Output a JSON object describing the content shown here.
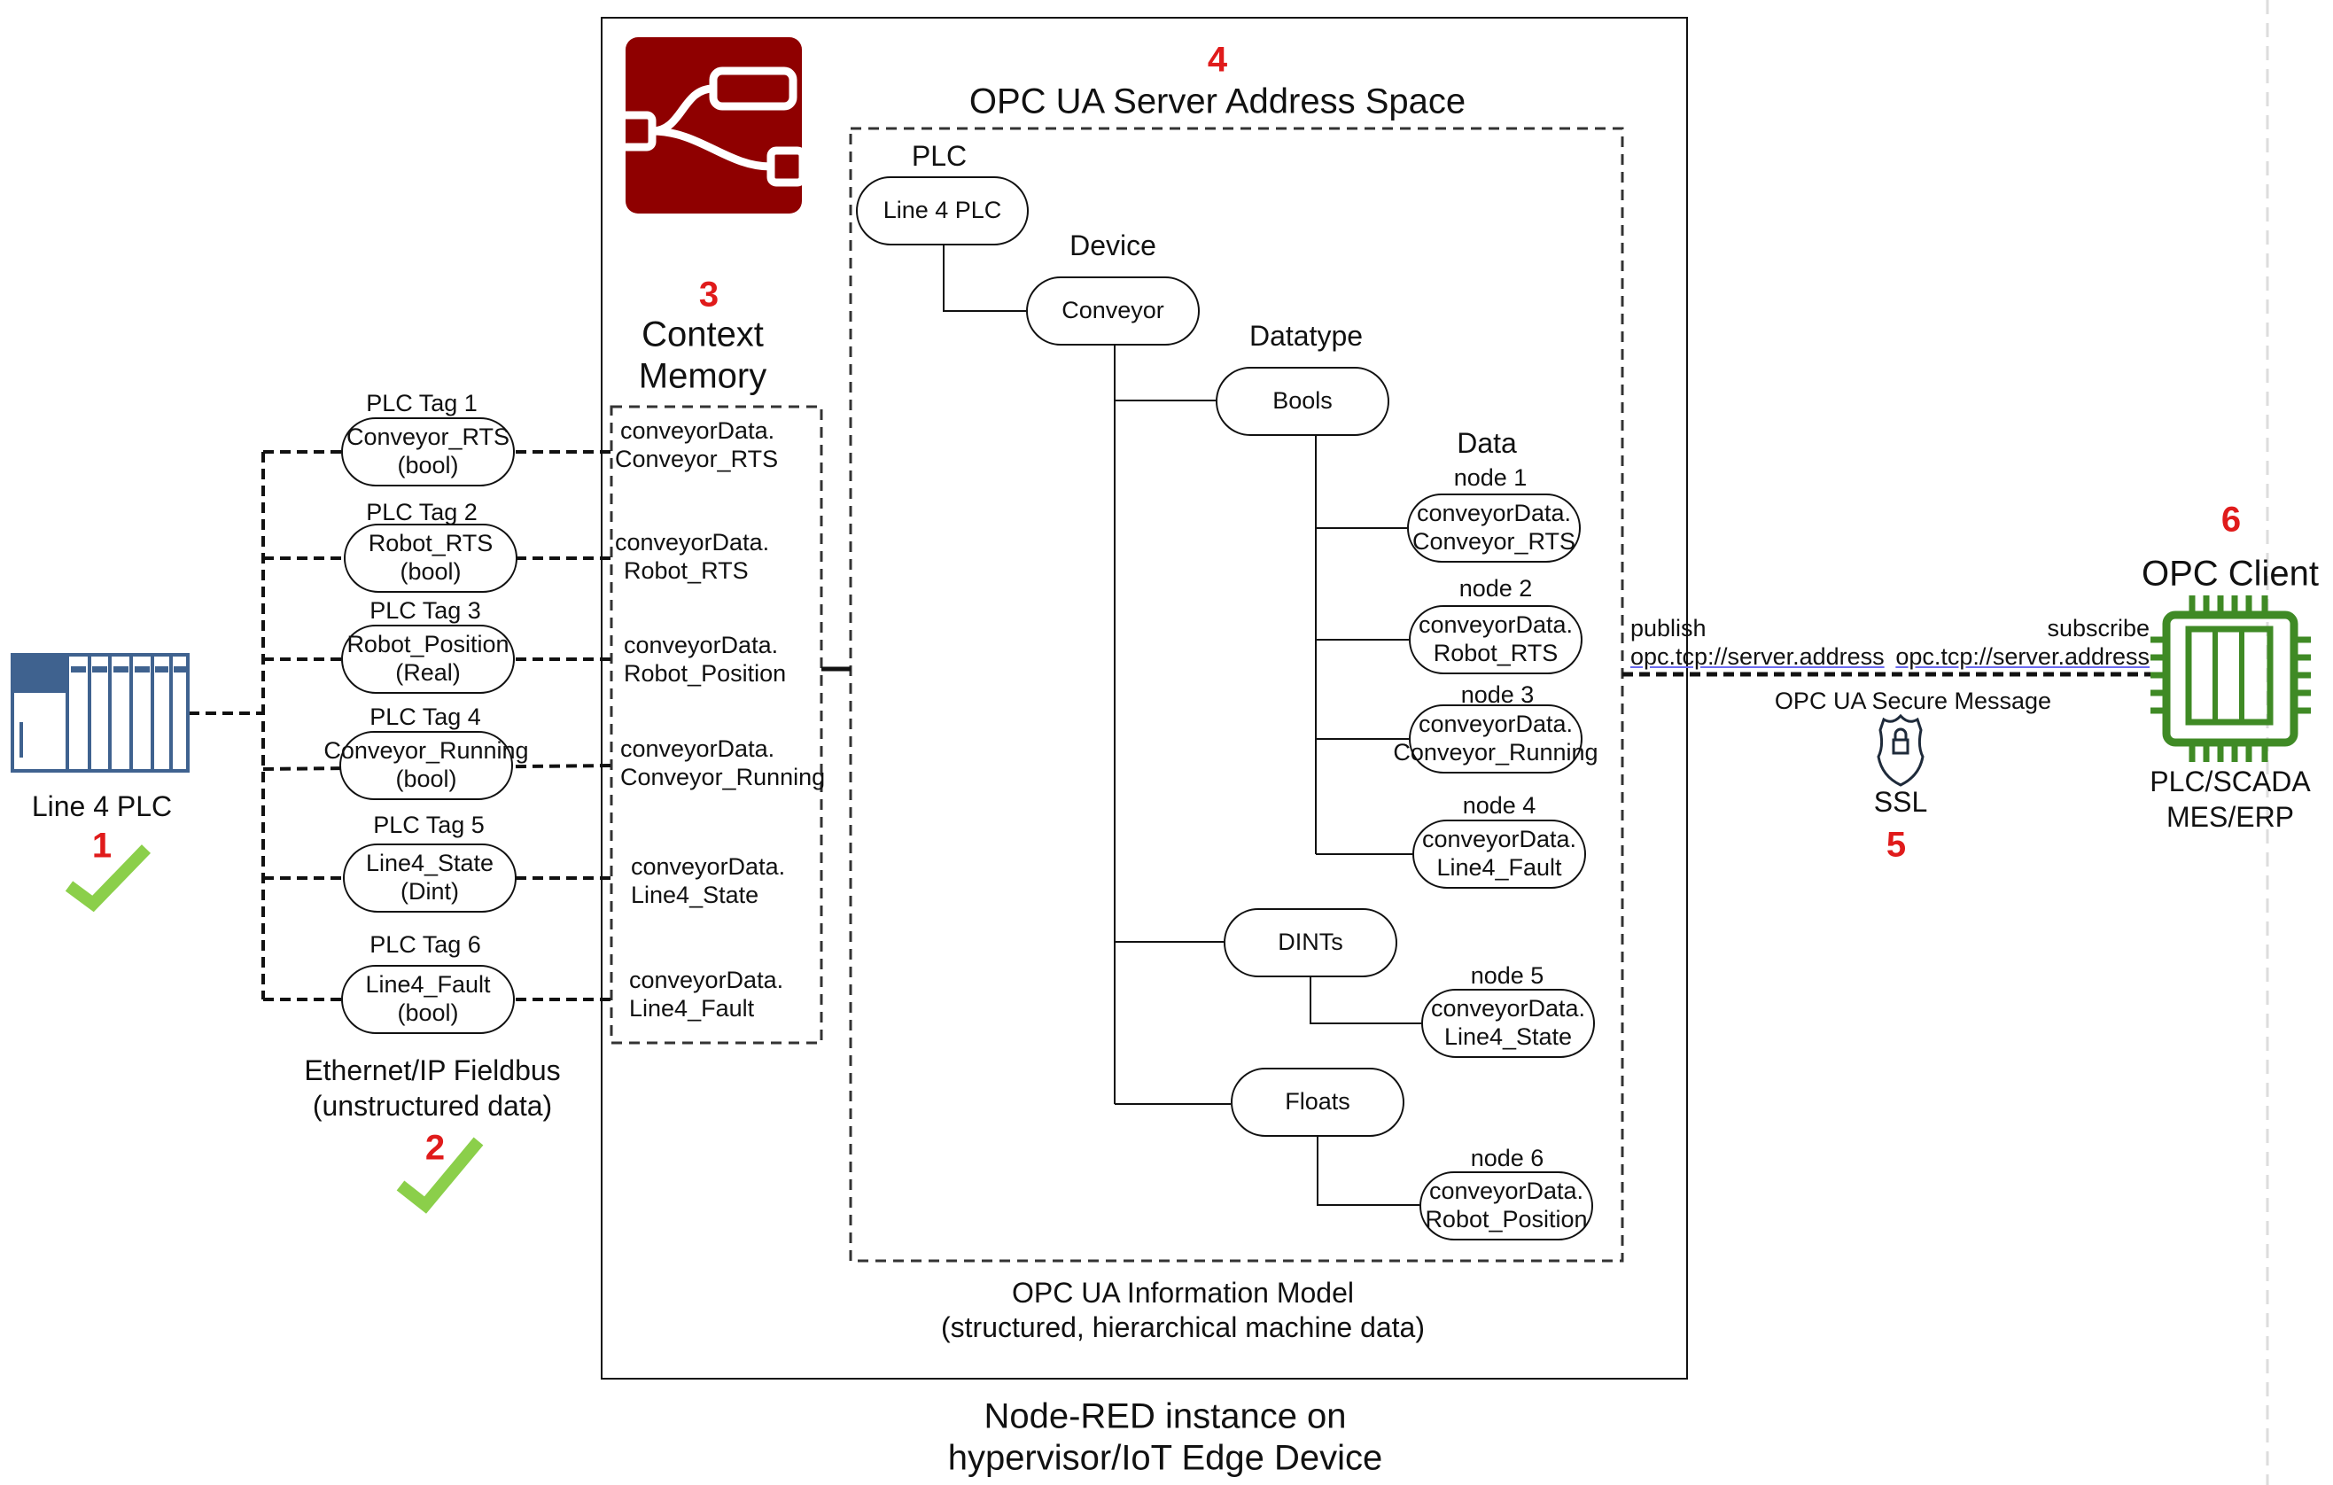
{
  "plc": {
    "label": "Line 4 PLC",
    "step": "1"
  },
  "tags": [
    {
      "title": "PLC Tag 1",
      "name": "Conveyor_RTS",
      "type": "(bool)"
    },
    {
      "title": "PLC Tag 2",
      "name": "Robot_RTS",
      "type": "(bool)"
    },
    {
      "title": "PLC Tag 3",
      "name": "Robot_Position",
      "type": "(Real)"
    },
    {
      "title": "PLC Tag 4",
      "name": "Conveyor_Running",
      "type": "(bool)"
    },
    {
      "title": "PLC Tag 5",
      "name": "Line4_State",
      "type": "(Dint)"
    },
    {
      "title": "PLC Tag 6",
      "name": "Line4_Fault",
      "type": "(bool)"
    }
  ],
  "fieldbus": {
    "line1": "Ethernet/IP Fieldbus",
    "line2": "(unstructured data)",
    "step": "2"
  },
  "context": {
    "step": "3",
    "line1": "Context",
    "line2": "Memory",
    "items": [
      [
        "conveyorData.",
        "Conveyor_RTS"
      ],
      [
        "conveyorData.",
        "Robot_RTS"
      ],
      [
        "conveyorData.",
        "Robot_Position"
      ],
      [
        "conveyorData.",
        "Conveyor_Running"
      ],
      [
        "conveyorData.",
        "Line4_State"
      ],
      [
        "conveyorData.",
        "Line4_Fault"
      ]
    ]
  },
  "server": {
    "step": "4",
    "title": "OPC UA Server Address Space",
    "plc_label": "PLC",
    "plc_node": "Line 4 PLC",
    "device_label": "Device",
    "device_node": "Conveyor",
    "datatype_label": "Datatype",
    "data_label": "Data",
    "bools": "Bools",
    "dints": "DINTs",
    "floats": "Floats",
    "nodes": [
      {
        "label": "node 1",
        "l1": "conveyorData.",
        "l2": "Conveyor_RTS"
      },
      {
        "label": "node 2",
        "l1": "conveyorData.",
        "l2": "Robot_RTS"
      },
      {
        "label": "node 3",
        "l1": "conveyorData.",
        "l2": "Conveyor_Running"
      },
      {
        "label": "node 4",
        "l1": "conveyorData.",
        "l2": "Line4_Fault"
      },
      {
        "label": "node 5",
        "l1": "conveyorData.",
        "l2": "Line4_State"
      },
      {
        "label": "node 6",
        "l1": "conveyorData.",
        "l2": "Robot_Position"
      }
    ],
    "model1": "OPC UA Information Model",
    "model2": "(structured, hierarchical machine data)"
  },
  "nodered": {
    "line1": "Node-RED instance on",
    "line2": "hypervisor/IoT Edge Device",
    "logo_color": "#8f0000"
  },
  "link": {
    "publish": "publish",
    "subscribe": "subscribe",
    "pub_url": "opc.tcp://server.address",
    "sub_url": "opc.tcp://server.address",
    "secure": "OPC UA Secure Message",
    "ssl": "SSL",
    "step": "5"
  },
  "client": {
    "step": "6",
    "title": "OPC Client",
    "line1": "PLC/SCADA",
    "line2": "MES/ERP",
    "color": "#3f8a25"
  },
  "colors": {
    "step": "#e01b1b",
    "check": "#8bcf4a",
    "plc_icon": "#3f628f"
  }
}
